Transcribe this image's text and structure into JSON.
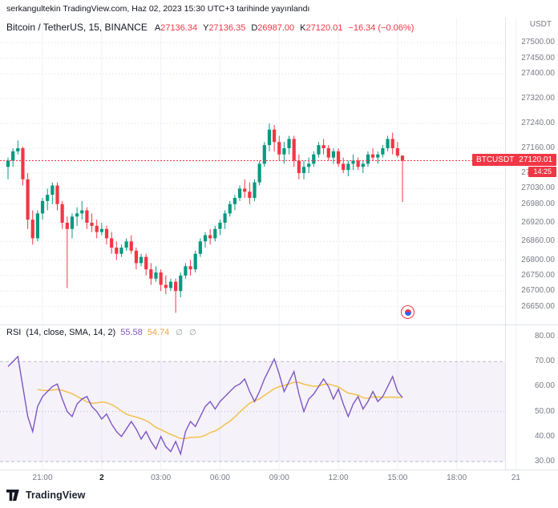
{
  "publish_bar": {
    "text": "serkangultekin TradingView.com, Haz 02, 2023 15:30 UTC+3 tarihinde yayınlandı"
  },
  "symbol_legend": {
    "title": "Bitcoin / TetherUS, 15, BINANCE",
    "ohlc": [
      {
        "label": "A",
        "value": "27136.34"
      },
      {
        "label": "Y",
        "value": "27136.35"
      },
      {
        "label": "D",
        "value": "26987.00"
      },
      {
        "label": "K",
        "value": "27120.01"
      }
    ],
    "change": "−16.34 (−0.06%)"
  },
  "rsi_legend": {
    "title": "RSI",
    "params": "(14, close, SMA, 14, 2)",
    "rsi_value": "55.58",
    "ma_value": "54.74",
    "icon_glyph": "∅"
  },
  "price_axis": {
    "currency": "USDT",
    "labels": [
      27500,
      27450,
      27400,
      27320,
      27240,
      27160,
      27080,
      27030,
      26980,
      26920,
      26860,
      26800,
      26750,
      26700,
      26650
    ],
    "last": {
      "symbol": "BTCUSDT",
      "price": "27120.01",
      "countdown": "14:25"
    }
  },
  "rsi_axis": {
    "labels": [
      80,
      70,
      60,
      50,
      40,
      30
    ]
  },
  "time_axis": {
    "labels": [
      {
        "text": "21:00",
        "idx": 7
      },
      {
        "text": "2",
        "idx": 19,
        "bold": true
      },
      {
        "text": "03:00",
        "idx": 31
      },
      {
        "text": "06:00",
        "idx": 43
      },
      {
        "text": "09:00",
        "idx": 55
      },
      {
        "text": "12:00",
        "idx": 67
      },
      {
        "text": "15:00",
        "idx": 79
      },
      {
        "text": "18:00",
        "idx": 91
      },
      {
        "text": "21",
        "idx": 103
      }
    ]
  },
  "footer": {
    "brand": "TradingView"
  },
  "colors": {
    "up": "#089981",
    "down": "#f23645",
    "text": "#131722",
    "muted": "#787b86",
    "grid": "#e0e3eb",
    "grid_dots": "#d9dce2",
    "vgrid": "#f0f3fa",
    "rsi": "#7e57c2",
    "rsi_ma": "#f2c14e",
    "band": "rgba(126,87,194,0.08)",
    "rsi_levels": "#b8bcc4"
  },
  "chart_data": [
    {
      "type": "candlestick",
      "title": "Bitcoin / TetherUS",
      "interval": "15",
      "exchange": "BINANCE",
      "price_range": [
        26600,
        27560
      ],
      "last": 27120.01,
      "ohlc": [
        [
          27100,
          27130,
          27060,
          27120
        ],
        [
          27120,
          27160,
          27100,
          27150
        ],
        [
          27150,
          27185,
          27140,
          27160
        ],
        [
          27160,
          27165,
          27040,
          27060
        ],
        [
          27060,
          27080,
          26900,
          26930
        ],
        [
          26930,
          26960,
          26850,
          26870
        ],
        [
          26870,
          26960,
          26860,
          26950
        ],
        [
          26950,
          27000,
          26930,
          26990
        ],
        [
          26990,
          27030,
          26960,
          27010
        ],
        [
          27010,
          27050,
          26980,
          27040
        ],
        [
          27040,
          27050,
          26960,
          26980
        ],
        [
          26980,
          26990,
          26900,
          26920
        ],
        [
          26920,
          26940,
          26710,
          26900
        ],
        [
          26900,
          26950,
          26870,
          26940
        ],
        [
          26940,
          26970,
          26910,
          26950
        ],
        [
          26950,
          26990,
          26930,
          26960
        ],
        [
          26960,
          26970,
          26900,
          26920
        ],
        [
          26920,
          26950,
          26890,
          26910
        ],
        [
          26910,
          26930,
          26870,
          26890
        ],
        [
          26890,
          26920,
          26880,
          26900
        ],
        [
          26900,
          26910,
          26850,
          26870
        ],
        [
          26870,
          26890,
          26820,
          26840
        ],
        [
          26840,
          26860,
          26800,
          26820
        ],
        [
          26820,
          26850,
          26810,
          26840
        ],
        [
          26840,
          26870,
          26830,
          26860
        ],
        [
          26860,
          26880,
          26820,
          26830
        ],
        [
          26830,
          26840,
          26770,
          26790
        ],
        [
          26790,
          26820,
          26780,
          26810
        ],
        [
          26810,
          26820,
          26750,
          26770
        ],
        [
          26770,
          26790,
          26720,
          26740
        ],
        [
          26740,
          26780,
          26730,
          26760
        ],
        [
          26760,
          26770,
          26700,
          26720
        ],
        [
          26720,
          26750,
          26690,
          26710
        ],
        [
          26710,
          26740,
          26700,
          26730
        ],
        [
          26730,
          26740,
          26630,
          26700
        ],
        [
          26700,
          26760,
          26680,
          26750
        ],
        [
          26750,
          26790,
          26740,
          26780
        ],
        [
          26780,
          26800,
          26750,
          26770
        ],
        [
          26770,
          26830,
          26760,
          26820
        ],
        [
          26820,
          26870,
          26810,
          26860
        ],
        [
          26860,
          26890,
          26840,
          26880
        ],
        [
          26880,
          26900,
          26850,
          26870
        ],
        [
          26870,
          26910,
          26860,
          26900
        ],
        [
          26900,
          26930,
          26880,
          26920
        ],
        [
          26920,
          26960,
          26900,
          26950
        ],
        [
          26950,
          26990,
          26940,
          26980
        ],
        [
          26980,
          27010,
          26960,
          27000
        ],
        [
          27000,
          27040,
          26990,
          27030
        ],
        [
          27030,
          27060,
          27000,
          27020
        ],
        [
          27020,
          27050,
          26980,
          27000
        ],
        [
          27000,
          27060,
          26990,
          27050
        ],
        [
          27050,
          27120,
          27040,
          27110
        ],
        [
          27110,
          27180,
          27100,
          27170
        ],
        [
          27170,
          27240,
          27150,
          27220
        ],
        [
          27220,
          27235,
          27150,
          27180
        ],
        [
          27180,
          27200,
          27120,
          27140
        ],
        [
          27140,
          27180,
          27110,
          27160
        ],
        [
          27160,
          27200,
          27140,
          27190
        ],
        [
          27190,
          27200,
          27100,
          27120
        ],
        [
          27120,
          27140,
          27060,
          27080
        ],
        [
          27080,
          27120,
          27060,
          27100
        ],
        [
          27100,
          27130,
          27080,
          27110
        ],
        [
          27110,
          27150,
          27100,
          27140
        ],
        [
          27140,
          27180,
          27130,
          27170
        ],
        [
          27170,
          27190,
          27140,
          27160
        ],
        [
          27160,
          27170,
          27120,
          27130
        ],
        [
          27130,
          27160,
          27110,
          27150
        ],
        [
          27150,
          27160,
          27100,
          27110
        ],
        [
          27110,
          27130,
          27080,
          27090
        ],
        [
          27090,
          27120,
          27070,
          27110
        ],
        [
          27110,
          27140,
          27090,
          27120
        ],
        [
          27120,
          27130,
          27090,
          27100
        ],
        [
          27100,
          27120,
          27080,
          27110
        ],
        [
          27110,
          27150,
          27100,
          27140
        ],
        [
          27140,
          27160,
          27120,
          27130
        ],
        [
          27130,
          27150,
          27110,
          27140
        ],
        [
          27140,
          27170,
          27130,
          27160
        ],
        [
          27160,
          27200,
          27150,
          27190
        ],
        [
          27190,
          27210,
          27140,
          27160
        ],
        [
          27160,
          27180,
          27130,
          27136.34
        ],
        [
          27136.34,
          27136.35,
          26987.0,
          27120.01
        ]
      ]
    },
    {
      "type": "line",
      "name": "RSI (14, close)",
      "range": [
        30,
        80
      ],
      "band": [
        30,
        70
      ],
      "sma_length": 14,
      "values": [
        68,
        70,
        72,
        60,
        48,
        42,
        52,
        56,
        58,
        60,
        61,
        55,
        50,
        48,
        53,
        55,
        56,
        52,
        50,
        47,
        49,
        45,
        42,
        40,
        43,
        46,
        43,
        39,
        42,
        38,
        35,
        40,
        36,
        34,
        38,
        33,
        42,
        46,
        44,
        48,
        52,
        54,
        51,
        54,
        56,
        58,
        60,
        61,
        63,
        58,
        54,
        58,
        63,
        67,
        71,
        65,
        58,
        62,
        66,
        57,
        50,
        55,
        57,
        60,
        63,
        60,
        55,
        59,
        53,
        48,
        53,
        56,
        51,
        54,
        58,
        54,
        56,
        60,
        64,
        58,
        55.58
      ]
    }
  ]
}
